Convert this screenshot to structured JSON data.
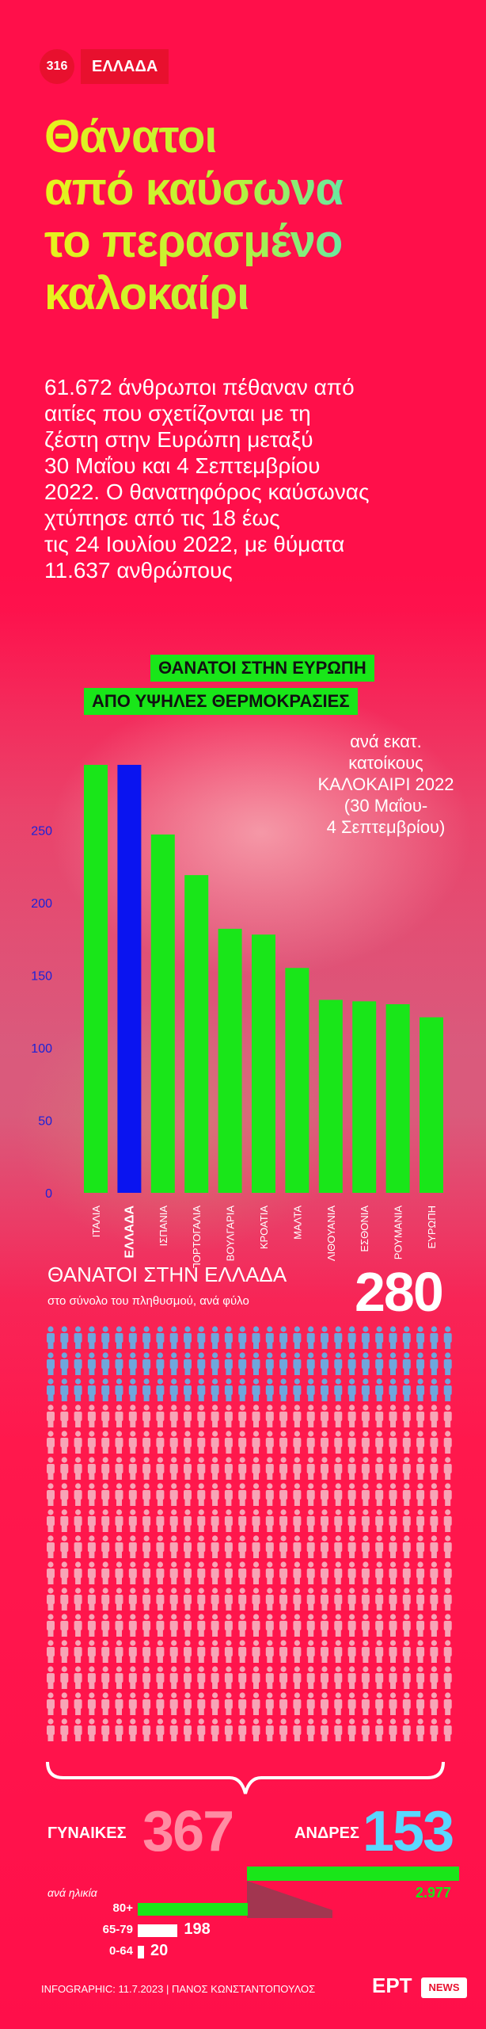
{
  "header": {
    "number": "316",
    "tag": "ΕΛΛΑΔΑ"
  },
  "title_lines": [
    "Θάνατοι",
    "από καύσωνα",
    "το περασμένο",
    "καλοκαίρι"
  ],
  "intro_lines": [
    "61.672 άνθρωποι πέθαναν από",
    "αιτίες που σχετίζονται με τη",
    "ζέστη στην Ευρώπη μεταξύ",
    "30 Μαΐου και 4 Σεπτεμβρίου",
    "2022. Ο θανατηφόρος καύσωνας",
    "χτύπησε από τις 18 έως",
    "τις 24 Ιουλίου 2022, με θύματα",
    "11.637 ανθρώπους"
  ],
  "europe": {
    "chip1": "ΘΑΝΑΤΟΙ ΣΤΗΝ ΕΥΡΩΠΗ",
    "chip2": "ΑΠΟ ΥΨΗΛΕΣ ΘΕΡΜΟΚΡΑΣΙΕΣ",
    "subtitle_lines": [
      "ανά εκατ. κατοίκους",
      "ΚΑΛΟΚΑΙΡΙ 2022",
      "(30 Μαΐου-",
      "4 Σεπτεμβρίου)"
    ]
  },
  "chart_data": {
    "type": "bar",
    "categories": [
      "ΙΤΑΛΙΑ",
      "ΕΛΛΑΔΑ",
      "ΙΣΠΑΝΙΑ",
      "ΠΟΡΤΟΓΑΛΙΑ",
      "ΒΟΥΛΓΑΡΙΑ",
      "ΚΡΟΑΤΙΑ",
      "ΜΑΛΤΑ",
      "ΛΙΘΟΥΑΝΙΑ",
      "ΕΣΘΟΝΙΑ",
      "ΡΟΥΜΑΝΙΑ",
      "ΕΥΡΩΠΗ"
    ],
    "values": [
      295,
      295,
      247,
      219,
      182,
      178,
      155,
      133,
      132,
      130,
      121
    ],
    "highlight": "ΕΛΛΑΔΑ",
    "colors": {
      "default": "#19e619",
      "highlight": "#0a14f0",
      "ticks": "#1a22d8"
    },
    "yticks": [
      "0",
      "50",
      "100",
      "150",
      "200",
      "250"
    ],
    "ylim": [
      0,
      295
    ]
  },
  "greece": {
    "title": "ΘΑΝΑΤΟΙ ΣΤΗΝ ΕΛΛΑΔΑ",
    "subtitle": "στο σύνολο του πληθυσμού, ανά φύλο",
    "total": "280",
    "people": {
      "rows": 16,
      "per_row": 30,
      "men_rows": 3,
      "colors": {
        "men": "#6fa6dc",
        "women": "#f7a4b6"
      }
    }
  },
  "gender": {
    "women_label": "ΓΥΝΑΙΚΕΣ",
    "women_value": "367",
    "men_label": "ΑΝΔΡΕΣ",
    "men_value": "153",
    "total_bar_value": "2.977"
  },
  "age": {
    "title": "ανά ηλικία",
    "groups": [
      {
        "label": "80+",
        "value": "",
        "fraction": 0.33,
        "color": "#19e619"
      },
      {
        "label": "65-79",
        "value": "198",
        "fraction": 0.12,
        "color": "#ffffff"
      },
      {
        "label": "0-64",
        "value": "20",
        "fraction": 0.012,
        "color": "#ffffff"
      }
    ]
  },
  "footer": {
    "credit": "INFOGRAPHIC: 11.7.2023 | ΠΑΝΟΣ ΚΩΝΣΤΑΝΤΟΠΟΥΛΟΣ",
    "logo": "ΕΡΤ",
    "logo_badge": "NEWS"
  }
}
